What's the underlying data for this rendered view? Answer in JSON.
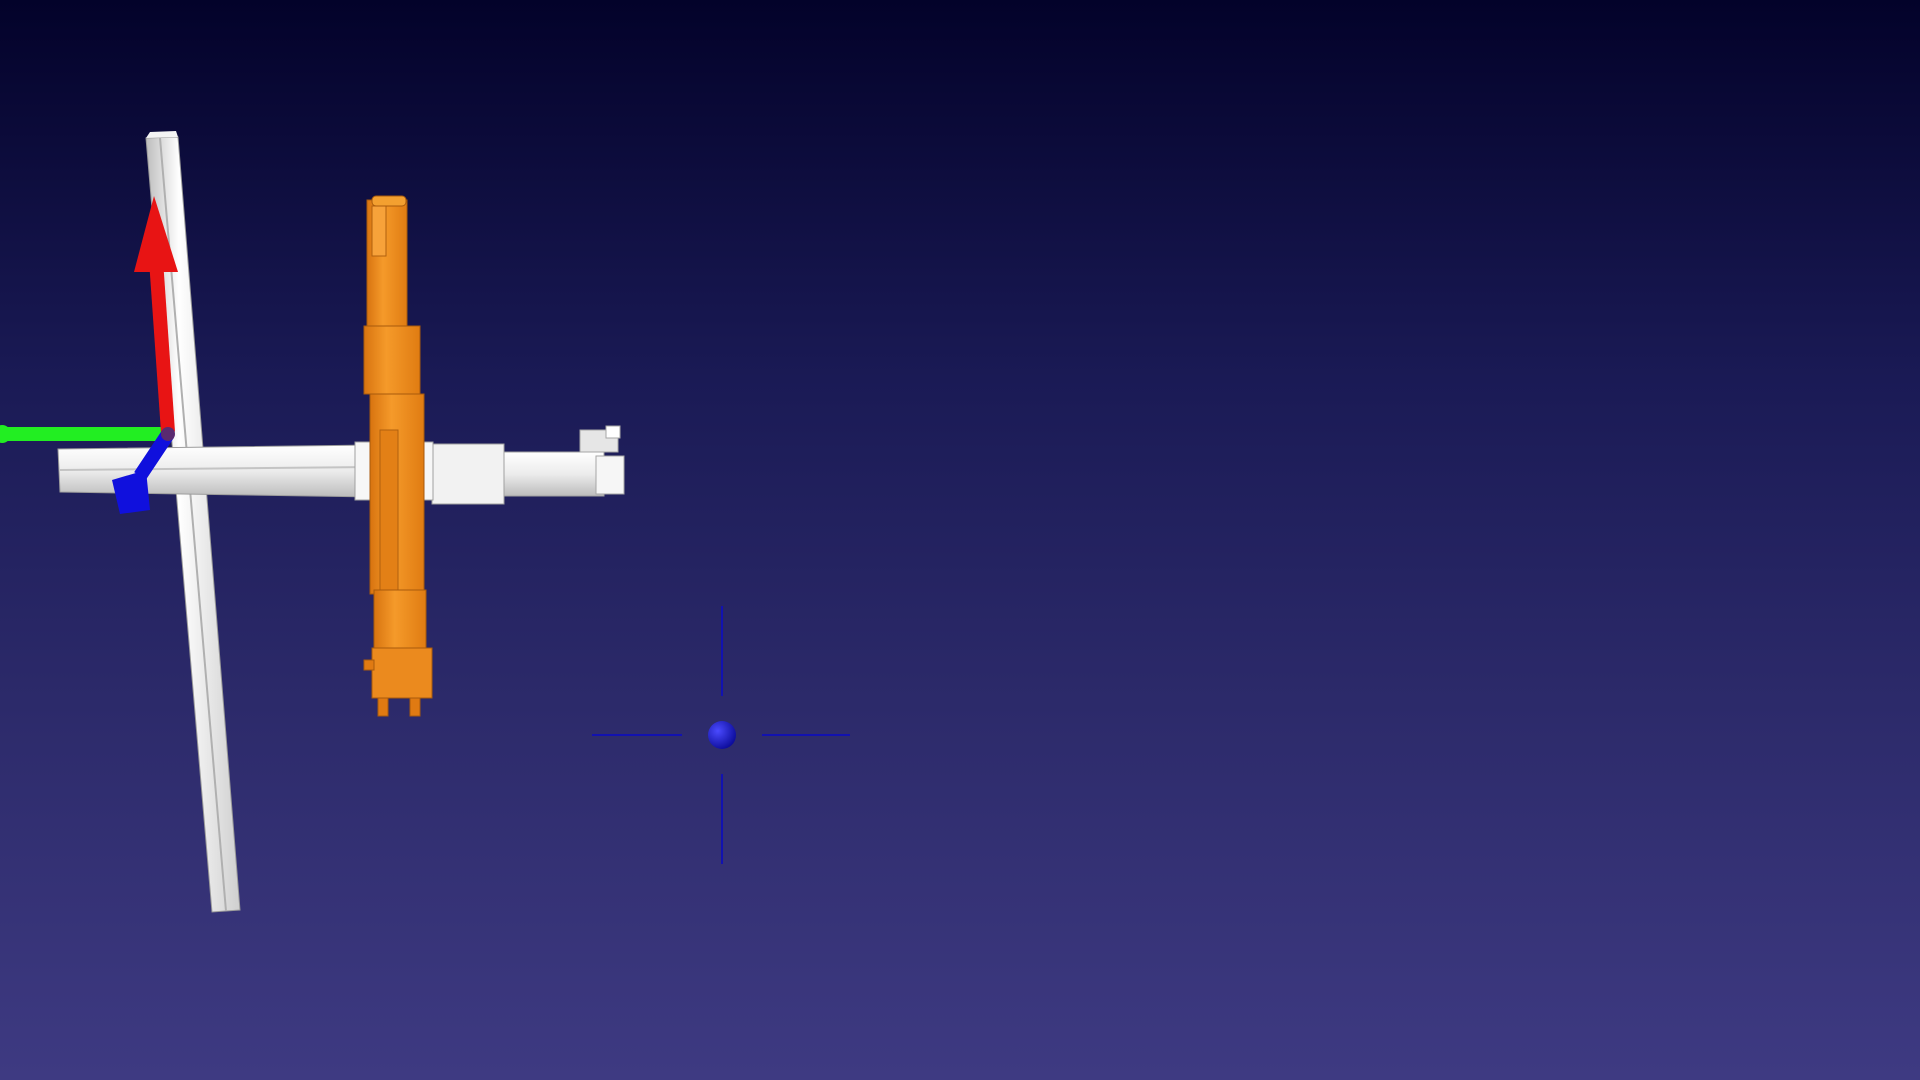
{
  "scene": {
    "background_top": "#03022a",
    "background_bottom": "#3e3a82",
    "axis_colors": {
      "x": "#e81414",
      "y": "#22ee22",
      "z": "#1010dd"
    },
    "robot_color": "#f08a1c",
    "rail_color": "#ededed",
    "pivot_color": "#1818c8"
  },
  "icons": {
    "axes_gizmo": "xyz-axes-icon",
    "pivot_marker": "crosshair-icon"
  }
}
